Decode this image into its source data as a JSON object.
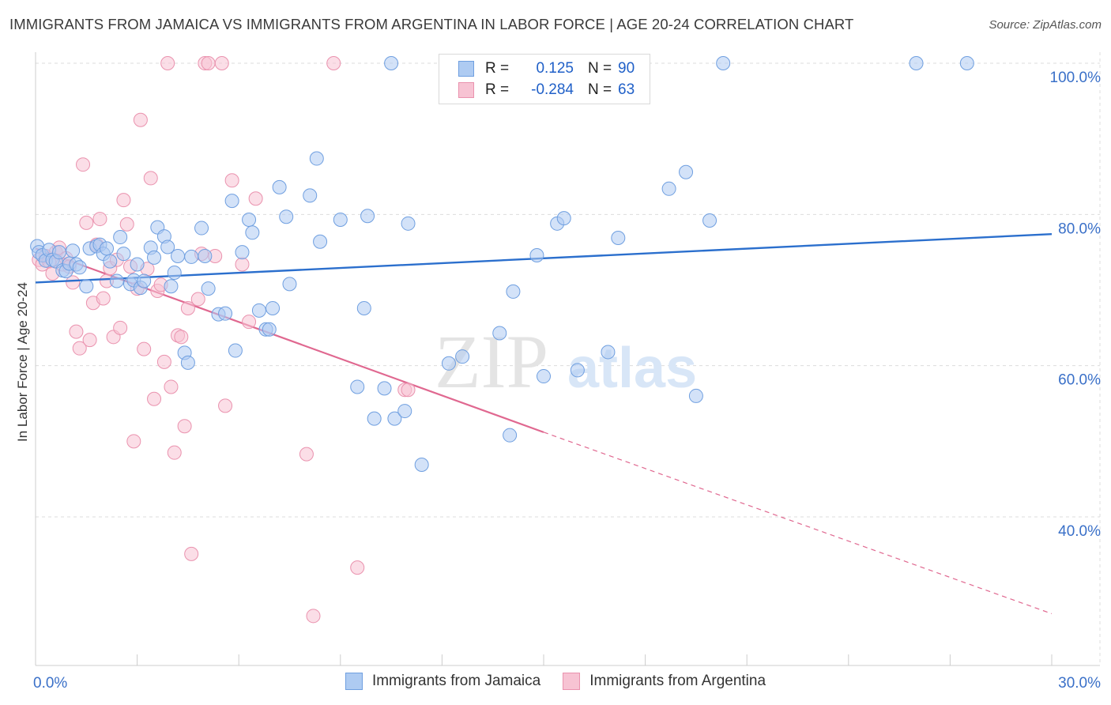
{
  "title": "IMMIGRANTS FROM JAMAICA VS IMMIGRANTS FROM ARGENTINA IN LABOR FORCE | AGE 20-24 CORRELATION CHART",
  "source": "Source: ZipAtlas.com",
  "watermark": {
    "zip": "ZIP",
    "atlas": "atlas"
  },
  "legend": {
    "rows": [
      {
        "r_label": "R =",
        "r_value": "0.125",
        "n_label": "N =",
        "n_value": "90"
      },
      {
        "r_label": "R =",
        "r_value": "-0.284",
        "n_label": "N =",
        "n_value": "63"
      }
    ]
  },
  "colors": {
    "jamaica_fill": "#aecbf2",
    "jamaica_stroke": "#6f9fe0",
    "jamaica_line": "#2b6fcd",
    "argentina_fill": "#f7c3d3",
    "argentina_stroke": "#ea92ae",
    "argentina_line": "#e06890",
    "axis_label": "#3a70c8",
    "grid": "#dcdcdc"
  },
  "chart_data": {
    "type": "scatter",
    "title": "IMMIGRANTS FROM JAMAICA VS IMMIGRANTS FROM ARGENTINA IN LABOR FORCE | AGE 20-24 CORRELATION CHART",
    "xlabel": "",
    "ylabel": "In Labor Force | Age 20-24",
    "xlim": [
      0,
      30
    ],
    "ylim": [
      22,
      102
    ],
    "x_ticks": [
      "0.0%",
      "30.0%"
    ],
    "y_ticks": [
      {
        "value": 100,
        "label": "100.0%"
      },
      {
        "value": 80,
        "label": "80.0%"
      },
      {
        "value": 60,
        "label": "60.0%"
      },
      {
        "value": 40,
        "label": "40.0%"
      }
    ],
    "grid": true,
    "legend_position": "top-center",
    "series": [
      {
        "name": "Immigrants from Jamaica",
        "r": 0.125,
        "n": 90,
        "trend": {
          "x0": 0,
          "y0": 71.0,
          "x1": 30,
          "y1": 77.4
        },
        "points": [
          [
            0.05,
            75.8
          ],
          [
            0.1,
            75.0
          ],
          [
            0.2,
            74.6
          ],
          [
            0.3,
            73.9
          ],
          [
            0.4,
            75.3
          ],
          [
            0.5,
            74.0
          ],
          [
            0.6,
            73.8
          ],
          [
            0.7,
            75.0
          ],
          [
            0.8,
            72.6
          ],
          [
            0.9,
            72.5
          ],
          [
            1.0,
            73.5
          ],
          [
            1.1,
            75.2
          ],
          [
            1.2,
            73.4
          ],
          [
            1.3,
            73.0
          ],
          [
            1.5,
            70.5
          ],
          [
            1.6,
            75.5
          ],
          [
            1.8,
            75.8
          ],
          [
            1.9,
            76.0
          ],
          [
            2.0,
            74.8
          ],
          [
            2.1,
            75.5
          ],
          [
            2.2,
            73.8
          ],
          [
            2.4,
            71.2
          ],
          [
            2.5,
            77.0
          ],
          [
            2.6,
            74.8
          ],
          [
            2.8,
            70.8
          ],
          [
            2.9,
            71.3
          ],
          [
            3.0,
            73.4
          ],
          [
            3.1,
            70.3
          ],
          [
            3.2,
            71.2
          ],
          [
            3.4,
            75.6
          ],
          [
            3.5,
            74.3
          ],
          [
            3.6,
            78.3
          ],
          [
            3.8,
            77.1
          ],
          [
            3.9,
            75.7
          ],
          [
            4.0,
            70.5
          ],
          [
            4.1,
            72.3
          ],
          [
            4.2,
            74.5
          ],
          [
            4.4,
            61.7
          ],
          [
            4.5,
            60.4
          ],
          [
            4.6,
            74.4
          ],
          [
            4.9,
            78.2
          ],
          [
            5.0,
            74.5
          ],
          [
            5.1,
            70.2
          ],
          [
            5.4,
            66.8
          ],
          [
            5.6,
            66.9
          ],
          [
            5.8,
            81.8
          ],
          [
            5.9,
            62.0
          ],
          [
            6.1,
            75.0
          ],
          [
            6.3,
            79.3
          ],
          [
            6.4,
            77.6
          ],
          [
            6.6,
            67.3
          ],
          [
            6.8,
            64.8
          ],
          [
            6.9,
            64.8
          ],
          [
            7.0,
            67.6
          ],
          [
            7.2,
            83.6
          ],
          [
            7.4,
            79.7
          ],
          [
            7.5,
            70.8
          ],
          [
            8.1,
            82.5
          ],
          [
            8.3,
            87.4
          ],
          [
            8.4,
            76.4
          ],
          [
            9.0,
            79.3
          ],
          [
            9.5,
            57.2
          ],
          [
            9.7,
            67.6
          ],
          [
            9.8,
            79.8
          ],
          [
            10.0,
            53.0
          ],
          [
            10.3,
            57.0
          ],
          [
            10.5,
            100.0
          ],
          [
            10.6,
            53.0
          ],
          [
            10.9,
            54.0
          ],
          [
            11.0,
            78.8
          ],
          [
            11.4,
            46.9
          ],
          [
            12.2,
            60.3
          ],
          [
            12.6,
            61.2
          ],
          [
            13.7,
            64.3
          ],
          [
            14.0,
            50.8
          ],
          [
            14.1,
            69.8
          ],
          [
            14.8,
            74.6
          ],
          [
            15.0,
            58.6
          ],
          [
            15.4,
            78.8
          ],
          [
            15.6,
            79.5
          ],
          [
            16.0,
            59.4
          ],
          [
            16.9,
            61.8
          ],
          [
            17.2,
            76.9
          ],
          [
            18.7,
            83.4
          ],
          [
            19.2,
            85.6
          ],
          [
            19.5,
            56.0
          ],
          [
            19.9,
            79.2
          ],
          [
            20.3,
            100.0
          ],
          [
            26.0,
            100.0
          ],
          [
            27.5,
            100.0
          ]
        ]
      },
      {
        "name": "Immigrants from Argentina",
        "r": -0.284,
        "n": 63,
        "trend_solid": {
          "x0": 0,
          "y0": 75.5,
          "x1": 15.0,
          "y1": 51.2
        },
        "trend_dashed": {
          "x0": 15.0,
          "y0": 51.2,
          "x1": 30,
          "y1": 27.2
        },
        "points": [
          [
            0.1,
            74.0
          ],
          [
            0.2,
            73.4
          ],
          [
            0.3,
            74.5
          ],
          [
            0.4,
            73.8
          ],
          [
            0.5,
            72.2
          ],
          [
            0.6,
            75.0
          ],
          [
            0.7,
            75.6
          ],
          [
            0.8,
            73.4
          ],
          [
            0.9,
            74.2
          ],
          [
            1.0,
            73.1
          ],
          [
            1.1,
            71.0
          ],
          [
            1.2,
            64.5
          ],
          [
            1.3,
            62.3
          ],
          [
            1.4,
            86.6
          ],
          [
            1.5,
            78.9
          ],
          [
            1.6,
            63.4
          ],
          [
            1.7,
            68.3
          ],
          [
            1.8,
            76.0
          ],
          [
            1.9,
            79.4
          ],
          [
            2.0,
            68.9
          ],
          [
            2.1,
            71.2
          ],
          [
            2.2,
            72.9
          ],
          [
            2.3,
            63.8
          ],
          [
            2.4,
            74.0
          ],
          [
            2.5,
            65.0
          ],
          [
            2.6,
            81.9
          ],
          [
            2.7,
            78.7
          ],
          [
            2.8,
            73.1
          ],
          [
            2.9,
            50.0
          ],
          [
            3.0,
            70.2
          ],
          [
            3.1,
            92.5
          ],
          [
            3.2,
            62.2
          ],
          [
            3.3,
            72.8
          ],
          [
            3.4,
            84.8
          ],
          [
            3.5,
            55.6
          ],
          [
            3.6,
            69.9
          ],
          [
            3.7,
            70.7
          ],
          [
            3.8,
            60.5
          ],
          [
            3.9,
            100.0
          ],
          [
            4.0,
            57.2
          ],
          [
            4.1,
            48.5
          ],
          [
            4.2,
            64.0
          ],
          [
            4.3,
            63.8
          ],
          [
            4.4,
            52.0
          ],
          [
            4.5,
            67.6
          ],
          [
            4.6,
            35.1
          ],
          [
            4.8,
            68.8
          ],
          [
            4.9,
            74.8
          ],
          [
            5.0,
            100.0
          ],
          [
            5.1,
            100.0
          ],
          [
            5.3,
            74.5
          ],
          [
            5.5,
            100.0
          ],
          [
            5.6,
            54.7
          ],
          [
            5.8,
            84.5
          ],
          [
            6.1,
            73.4
          ],
          [
            6.3,
            65.8
          ],
          [
            6.5,
            82.1
          ],
          [
            8.0,
            48.3
          ],
          [
            8.2,
            26.9
          ],
          [
            8.8,
            100.0
          ],
          [
            9.5,
            33.3
          ],
          [
            10.9,
            56.8
          ],
          [
            11.0,
            56.8
          ]
        ]
      }
    ]
  }
}
